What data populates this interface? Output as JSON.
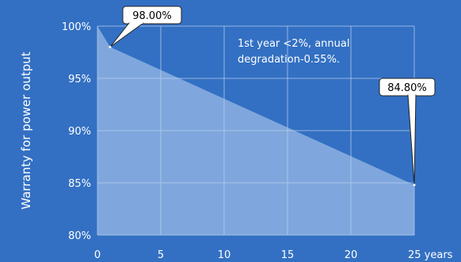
{
  "chart_data": {
    "type": "area",
    "title": "",
    "xlabel": "",
    "ylabel": "Warranty for power output",
    "x": [
      0,
      1,
      25
    ],
    "series": [
      {
        "values": [
          100,
          98.0,
          84.8
        ]
      }
    ],
    "xlim": [
      0,
      25
    ],
    "ylim": [
      80,
      100
    ],
    "x_ticks": [
      0,
      5,
      10,
      15,
      20,
      25
    ],
    "x_tick_labels": [
      "0",
      "5",
      "10",
      "15",
      "20",
      "25 years"
    ],
    "y_ticks": [
      80,
      85,
      90,
      95,
      100
    ],
    "y_tick_labels": [
      "80%",
      "85%",
      "90%",
      "95%",
      "100%"
    ],
    "grid": true,
    "annotation": {
      "line1": "1st year <2%, annual",
      "line2": "degradation-0.55%."
    },
    "callouts": [
      {
        "label": "98.00%",
        "x": 1,
        "y": 98.0
      },
      {
        "label": "84.80%",
        "x": 25,
        "y": 84.8
      }
    ],
    "colors": {
      "background": "#3370c3",
      "fill": "#7fa7dd",
      "grid": "#b5cdec",
      "text": "#ffffff",
      "callout_bg": "#ffffff",
      "callout_text": "#000000"
    }
  }
}
